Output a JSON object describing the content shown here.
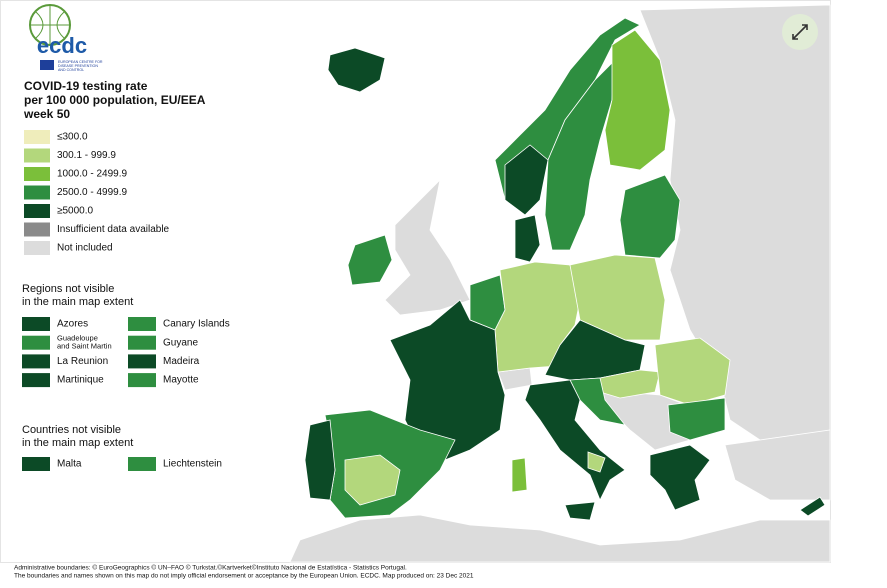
{
  "logo": {
    "name": "ecdc",
    "subtitle": [
      "EUROPEAN CENTRE FOR",
      "DISEASE PREVENTION",
      "AND CONTROL"
    ]
  },
  "legend": {
    "title": [
      "COVID-19 testing rate",
      "per 100 000 population, EU/EEA",
      "week 50"
    ],
    "items": [
      {
        "label": "≤300.0",
        "color": "#efedbb"
      },
      {
        "label": "300.1 - 999.9",
        "color": "#b3d77c"
      },
      {
        "label": "1000.0 - 2499.9",
        "color": "#7bbf3a"
      },
      {
        "label": "2500.0 - 4999.9",
        "color": "#2e8e40"
      },
      {
        "label": "≥5000.0",
        "color": "#0c4a26"
      },
      {
        "label": "Insufficient data available",
        "color": "#8a8a8a"
      },
      {
        "label": "Not included",
        "color": "#dcdcdc"
      }
    ]
  },
  "regions": {
    "title": [
      "Regions not visible",
      "in the main map extent"
    ],
    "items": [
      {
        "label": "Azores",
        "color": "#0c4a26"
      },
      {
        "label": [
          "Guadeloupe",
          "and Saint Martin"
        ],
        "color": "#2e8e40"
      },
      {
        "label": "La Reunion",
        "color": "#0c4a26"
      },
      {
        "label": "Martinique",
        "color": "#0c4a26"
      },
      {
        "label": "Canary Islands",
        "color": "#2e8e40"
      },
      {
        "label": "Guyane",
        "color": "#2e8e40"
      },
      {
        "label": "Madeira",
        "color": "#0c4a26"
      },
      {
        "label": "Mayotte",
        "color": "#2e8e40"
      }
    ]
  },
  "countries": {
    "title": [
      "Countries not visible",
      "in the main map extent"
    ],
    "items": [
      {
        "label": "Malta",
        "color": "#0c4a26"
      },
      {
        "label": "Liechtenstein",
        "color": "#2e8e40"
      }
    ]
  },
  "footer": [
    "Administrative boundaries: © EuroGeographics © UN–FAO © Turkstat.©Kartverket©Instituto Nacional de Estatística - Statistics Portugal.",
    "The boundaries and names shown on this map do not imply official endorsement or acceptance by the European Union. ECDC. Map produced on: 23 Dec 2021"
  ]
}
